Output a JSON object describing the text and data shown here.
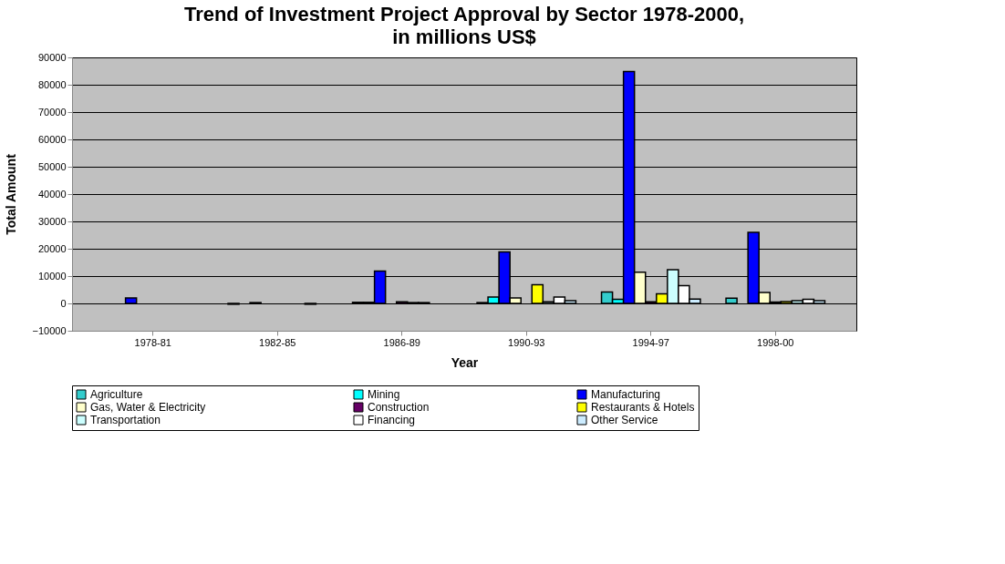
{
  "chart_data": {
    "type": "bar",
    "title": "Trend of Investment Project Approval by Sector 1978-2000, in millions US$",
    "xlabel": "Year",
    "ylabel": "Total Amount",
    "categories": [
      "1978-81",
      "1982-85",
      "1986-89",
      "1990-93",
      "1994-97",
      "1998-00"
    ],
    "series": [
      {
        "name": "Agriculture",
        "color": "#33cccc",
        "values": [
          null,
          -300,
          400,
          300,
          4200,
          1900
        ]
      },
      {
        "name": "Mining",
        "color": "#00ffff",
        "values": [
          null,
          null,
          400,
          2300,
          1500,
          null
        ]
      },
      {
        "name": "Manufacturing",
        "color": "#0000ff",
        "values": [
          2000,
          300,
          11800,
          18800,
          84800,
          26000
        ]
      },
      {
        "name": "Gas, Water & Electricity",
        "color": "#ffffcc",
        "values": [
          null,
          null,
          null,
          2000,
          11400,
          4000
        ]
      },
      {
        "name": "Construction",
        "color": "#660066",
        "values": [
          null,
          null,
          600,
          null,
          600,
          500
        ]
      },
      {
        "name": "Restaurants & Hotels",
        "color": "#ffff00",
        "values": [
          null,
          null,
          300,
          6800,
          3500,
          700
        ]
      },
      {
        "name": "Transportation",
        "color": "#ccffff",
        "values": [
          null,
          null,
          300,
          600,
          12300,
          1000
        ]
      },
      {
        "name": "Financing",
        "color": "#ffffff",
        "values": [
          null,
          -300,
          null,
          2300,
          6500,
          1500
        ]
      },
      {
        "name": "Other Service",
        "color": "#ccecff",
        "values": [
          null,
          null,
          null,
          1000,
          1600,
          1000
        ]
      }
    ],
    "ylim": [
      -10000,
      90000
    ],
    "yticks": [
      -10000,
      0,
      10000,
      20000,
      30000,
      40000,
      50000,
      60000,
      70000,
      80000,
      90000
    ],
    "grid": "y",
    "legend": "bottom"
  }
}
